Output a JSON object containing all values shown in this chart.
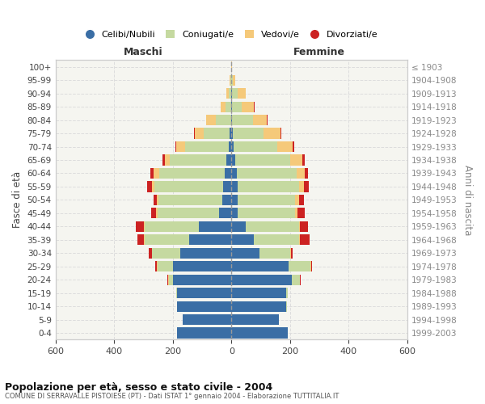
{
  "age_groups": [
    "0-4",
    "5-9",
    "10-14",
    "15-19",
    "20-24",
    "25-29",
    "30-34",
    "35-39",
    "40-44",
    "45-49",
    "50-54",
    "55-59",
    "60-64",
    "65-69",
    "70-74",
    "75-79",
    "80-84",
    "85-89",
    "90-94",
    "95-99",
    "100+"
  ],
  "birth_years": [
    "1999-2003",
    "1994-1998",
    "1989-1993",
    "1984-1988",
    "1979-1983",
    "1974-1978",
    "1969-1973",
    "1964-1968",
    "1959-1963",
    "1954-1958",
    "1949-1953",
    "1944-1948",
    "1939-1943",
    "1934-1938",
    "1929-1933",
    "1924-1928",
    "1919-1923",
    "1914-1918",
    "1909-1913",
    "1904-1908",
    "≤ 1903"
  ],
  "males_celibi": [
    185,
    165,
    185,
    185,
    200,
    200,
    175,
    145,
    110,
    42,
    32,
    28,
    22,
    18,
    10,
    5,
    2,
    2,
    1,
    1,
    0
  ],
  "males_coniugati": [
    0,
    0,
    0,
    2,
    14,
    52,
    95,
    150,
    185,
    210,
    218,
    235,
    225,
    192,
    148,
    90,
    52,
    18,
    8,
    2,
    0
  ],
  "males_vedovi": [
    0,
    0,
    0,
    0,
    2,
    3,
    2,
    4,
    4,
    4,
    5,
    9,
    18,
    18,
    30,
    30,
    32,
    18,
    8,
    2,
    0
  ],
  "males_divorziati": [
    0,
    0,
    0,
    0,
    2,
    4,
    10,
    22,
    28,
    18,
    10,
    15,
    12,
    8,
    4,
    2,
    0,
    0,
    0,
    0,
    0
  ],
  "females_nubili": [
    192,
    162,
    188,
    188,
    205,
    195,
    95,
    75,
    50,
    22,
    20,
    20,
    18,
    13,
    7,
    4,
    3,
    2,
    2,
    0,
    0
  ],
  "females_coniugate": [
    0,
    0,
    2,
    4,
    28,
    75,
    105,
    155,
    180,
    195,
    198,
    210,
    205,
    188,
    150,
    105,
    70,
    32,
    18,
    4,
    0
  ],
  "females_vedove": [
    0,
    0,
    0,
    0,
    1,
    2,
    2,
    4,
    4,
    8,
    13,
    18,
    28,
    42,
    52,
    58,
    48,
    42,
    28,
    9,
    2
  ],
  "females_divorziate": [
    0,
    0,
    0,
    0,
    1,
    2,
    6,
    32,
    28,
    26,
    15,
    15,
    10,
    6,
    4,
    2,
    2,
    2,
    0,
    0,
    0
  ],
  "colors": {
    "celibi": "#3a6ea5",
    "coniugati": "#c5d9a0",
    "vedovi": "#f5c97a",
    "divorziati": "#cc2222"
  },
  "xlim": 600,
  "title": "Popolazione per età, sesso e stato civile - 2004",
  "subtitle": "COMUNE DI SERRAVALLE PISTOIESE (PT) - Dati ISTAT 1° gennaio 2004 - Elaborazione TUTTITALIA.IT",
  "ylabel": "Fasce di età",
  "ylabel_right": "Anni di nascita",
  "legend_labels": [
    "Celibi/Nubili",
    "Coniugati/e",
    "Vedovi/e",
    "Divorziati/e"
  ],
  "maschi_label": "Maschi",
  "femmine_label": "Femmine",
  "bg_color": "#ffffff",
  "plot_bg_color": "#f5f5f0",
  "grid_color": "#dddddd",
  "tick_vals": [
    -600,
    -400,
    -200,
    0,
    200,
    400,
    600
  ]
}
